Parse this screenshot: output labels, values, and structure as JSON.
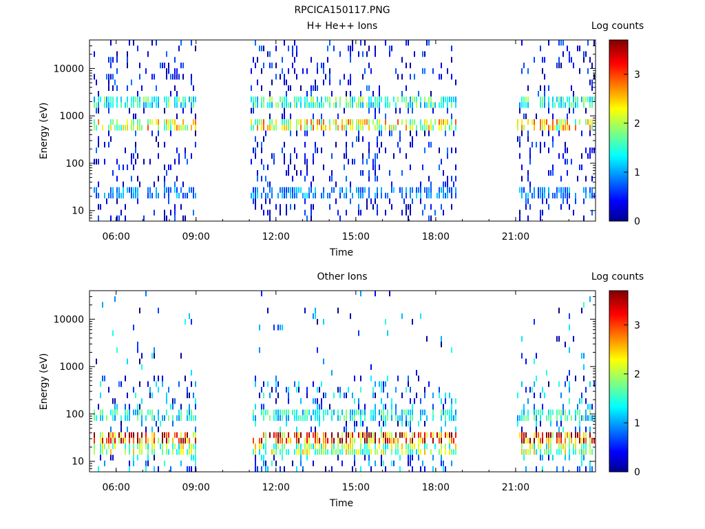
{
  "figure_title": "RPCICA150117.PNG",
  "chart_data": [
    {
      "type": "heatmap",
      "title": "H+ He++ Ions",
      "xlabel": "Time",
      "ylabel": "Energy (eV)",
      "x_ticks": [
        "06:00",
        "09:00",
        "12:00",
        "15:00",
        "18:00",
        "21:00"
      ],
      "x_range_hours": [
        5.0,
        24.0
      ],
      "y_scale": "log",
      "y_ticks": [
        10,
        100,
        1000,
        10000
      ],
      "y_tick_labels": [
        "10",
        "100",
        "1000",
        "10000"
      ],
      "y_range": [
        6,
        40000
      ],
      "colorbar": {
        "label": "Log counts",
        "ticks": [
          0,
          1,
          2,
          3
        ],
        "range": [
          0,
          3.7
        ]
      },
      "data_intervals_hours": [
        [
          5.1,
          9.0
        ],
        [
          11.0,
          18.8
        ],
        [
          21.0,
          24.0
        ]
      ],
      "bands": [
        {
          "energy_eV": 1800,
          "level": 1.6
        },
        {
          "energy_eV": 700,
          "level": 2.3
        },
        {
          "energy_eV": 25,
          "level": 1.0
        }
      ]
    },
    {
      "type": "heatmap",
      "title": "Other Ions",
      "xlabel": "Time",
      "ylabel": "Energy (eV)",
      "x_ticks": [
        "06:00",
        "09:00",
        "12:00",
        "15:00",
        "18:00",
        "21:00"
      ],
      "x_range_hours": [
        5.0,
        24.0
      ],
      "y_scale": "log",
      "y_ticks": [
        10,
        100,
        1000,
        10000
      ],
      "y_tick_labels": [
        "10",
        "100",
        "1000",
        "10000"
      ],
      "y_range": [
        6,
        40000
      ],
      "colorbar": {
        "label": "Log counts",
        "ticks": [
          0,
          1,
          2,
          3
        ],
        "range": [
          0,
          3.7
        ]
      },
      "data_intervals_hours": [
        [
          5.1,
          9.0
        ],
        [
          11.0,
          18.8
        ],
        [
          21.0,
          24.0
        ]
      ],
      "bands": [
        {
          "energy_eV": 30,
          "level": 3.1
        },
        {
          "energy_eV": 20,
          "level": 2.0
        },
        {
          "energy_eV": 100,
          "level": 1.5
        }
      ]
    }
  ]
}
